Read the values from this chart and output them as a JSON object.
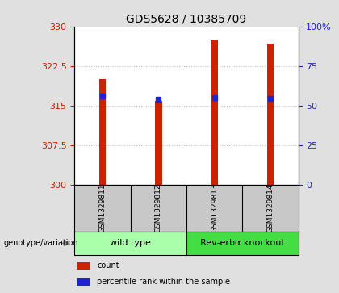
{
  "title": "GDS5628 / 10385709",
  "categories": [
    "GSM1329811",
    "GSM1329812",
    "GSM1329813",
    "GSM1329814"
  ],
  "bar_values": [
    320.0,
    315.9,
    327.5,
    326.8
  ],
  "bar_bottom": 300,
  "percentile_values": [
    316.8,
    316.2,
    316.5,
    316.4
  ],
  "ylim_left": [
    300,
    330
  ],
  "ylim_right": [
    0,
    100
  ],
  "yticks_left": [
    300,
    307.5,
    315,
    322.5,
    330
  ],
  "yticks_right": [
    0,
    25,
    50,
    75,
    100
  ],
  "ytick_labels_left": [
    "300",
    "307.5",
    "315",
    "322.5",
    "330"
  ],
  "ytick_labels_right": [
    "0",
    "25",
    "50",
    "75",
    "100%"
  ],
  "bar_color": "#cc2200",
  "percentile_color": "#2222cc",
  "bar_width": 0.12,
  "groups": [
    {
      "label": "wild type",
      "indices": [
        0,
        1
      ],
      "color": "#aaffaa"
    },
    {
      "label": "Rev-erbα knockout",
      "indices": [
        2,
        3
      ],
      "color": "#44dd44"
    }
  ],
  "group_row_label": "genotype/variation",
  "legend_items": [
    {
      "label": "count",
      "color": "#cc2200"
    },
    {
      "label": "percentile rank within the sample",
      "color": "#2222cc"
    }
  ],
  "grid_color": "#000000",
  "grid_alpha": 0.25,
  "background_plot": "#ffffff",
  "background_label_row": "#c8c8c8",
  "background_outer": "#e0e0e0"
}
